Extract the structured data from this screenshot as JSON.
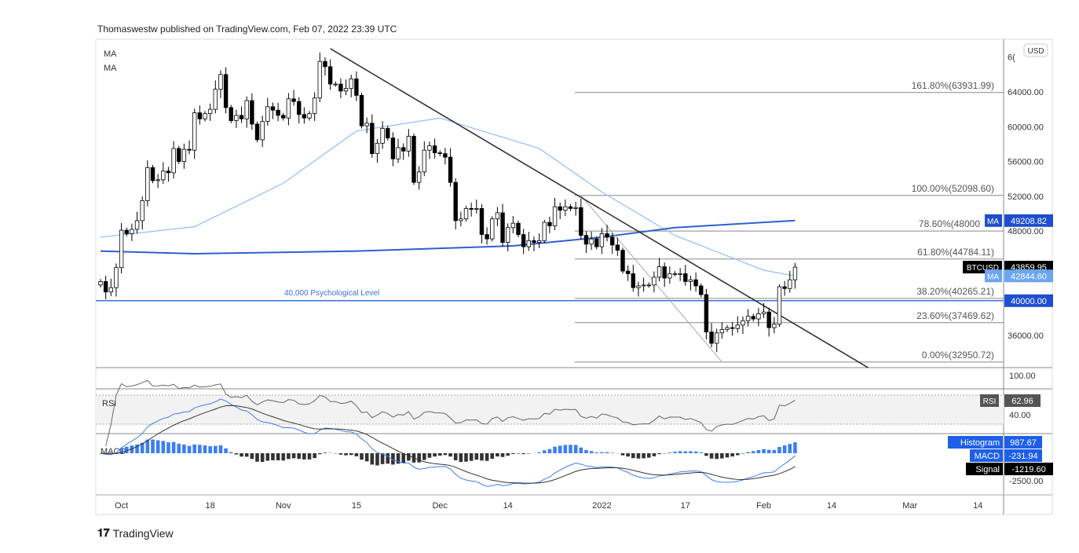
{
  "credit": "Thomaswestw published on TradingView.com, Feb 07, 2022 23:39 UTC",
  "brand": "TradingView",
  "legend": {
    "ma1": "MA",
    "ma2": "MA",
    "rsi": "RSI",
    "macd": "MACD"
  },
  "currency": "USD",
  "annotation": "40,000 Psychological Level",
  "colors": {
    "ma50": "#90bff5",
    "ma200": "#2f5fd0",
    "level": "#3b6fe0",
    "trend": "#333333",
    "up": "#ffffff",
    "down": "#000000"
  },
  "chart_data": {
    "type": "candlestick",
    "symbol": "BTCUSD",
    "start_date": "2021-09-27",
    "closes": [
      42200,
      41000,
      41500,
      43800,
      48100,
      47700,
      48200,
      49200,
      51500,
      55300,
      53800,
      53900,
      54900,
      54700,
      57500,
      56000,
      57400,
      57300,
      61600,
      60900,
      61500,
      62000,
      64300,
      66000,
      62200,
      60700,
      61300,
      60900,
      63000,
      60300,
      58500,
      60600,
      62300,
      61900,
      61300,
      61000,
      63200,
      62900,
      61400,
      61000,
      61500,
      63300,
      67500,
      66900,
      64900,
      64900,
      64100,
      64400,
      65500,
      63600,
      60100,
      60400,
      56900,
      58100,
      59800,
      58700,
      56300,
      57600,
      57200,
      58900,
      53600,
      54800,
      57300,
      57800,
      57000,
      56900,
      56500,
      53600,
      49200,
      49400,
      50600,
      50500,
      50600,
      47600,
      47100,
      49400,
      50100,
      46700,
      48400,
      48900,
      47600,
      46200,
      46900,
      46700,
      46900,
      49000,
      48600,
      50800,
      50400,
      50800,
      50600,
      50700,
      47500,
      46500,
      47100,
      46200,
      47700,
      47300,
      46400,
      45800,
      43400,
      43100,
      41500,
      41700,
      41800,
      41800,
      42700,
      43900,
      42600,
      43100,
      43100,
      43100,
      42200,
      42400,
      41700,
      40700,
      36400,
      35100,
      36300,
      36700,
      36900,
      36800,
      37200,
      37700,
      38200,
      37900,
      38500,
      38700,
      36900,
      37300,
      41600,
      41400,
      42400,
      43860
    ],
    "ma50": [
      [
        "2021-09-27",
        47300
      ],
      [
        "2021-10-15",
        48500
      ],
      [
        "2021-11-01",
        53500
      ],
      [
        "2021-11-15",
        59500
      ],
      [
        "2021-12-01",
        61000
      ],
      [
        "2021-12-20",
        57500
      ],
      [
        "2022-01-01",
        52500
      ],
      [
        "2022-01-15",
        47500
      ],
      [
        "2022-02-01",
        43500
      ],
      [
        "2022-02-07",
        42844.6
      ]
    ],
    "ma200": [
      [
        "2021-09-27",
        45700
      ],
      [
        "2021-10-15",
        45400
      ],
      [
        "2021-11-15",
        45700
      ],
      [
        "2021-12-15",
        46300
      ],
      [
        "2022-01-01",
        47300
      ],
      [
        "2022-01-15",
        48400
      ],
      [
        "2022-02-07",
        49208.82
      ]
    ],
    "trendline": [
      [
        "2021-11-10",
        68970
      ],
      [
        "2022-02-21",
        32300
      ]
    ],
    "fib_anchor": [
      [
        "2021-12-28",
        52098.6
      ],
      [
        "2022-01-24",
        32950.72
      ]
    ],
    "horizontal_level": 40000,
    "fib_levels": [
      {
        "label": "161.80%(63931.99)",
        "value": 63931.99
      },
      {
        "label": "100.00%(52098.60)",
        "value": 52098.6
      },
      {
        "label": "78.60%(48000",
        "value": 48000
      },
      {
        "label": "61.80%(44784.11)",
        "value": 44784.11
      },
      {
        "label": "38.20%(40265.21)",
        "value": 40265.21
      },
      {
        "label": "23.60%(37469.62)",
        "value": 37469.62
      },
      {
        "label": "0.00%(32950.72)",
        "value": 32950.72
      }
    ],
    "y_ticks": [
      "6(",
      "64000.00",
      "60000.00",
      "56000.00",
      "52000.00",
      "48000.00",
      "36000.00"
    ],
    "y_tick_values": [
      68000,
      64000,
      60000,
      56000,
      52000,
      48000,
      36000
    ],
    "x_ticks": [
      "Oct",
      "18",
      "Nov",
      "15",
      "Dec",
      "14",
      "2022",
      "17",
      "Feb",
      "14",
      "Mar",
      "14"
    ],
    "x_tick_dates": [
      "2021-10-01",
      "2021-10-18",
      "2021-11-01",
      "2021-11-15",
      "2021-12-01",
      "2021-12-14",
      "2022-01-01",
      "2022-01-17",
      "2022-02-01",
      "2022-02-14",
      "2022-03-01",
      "2022-03-14"
    ],
    "price_labels": [
      {
        "tag": "MA",
        "value": "49208.82",
        "price": 49208.82,
        "bg": "#1e4fd0"
      },
      {
        "tag": "BTCUSD",
        "value": "43859.95",
        "price": 43859.95,
        "bg": "#000000"
      },
      {
        "tag": "MA",
        "value": "42844.60",
        "price": 42844.6,
        "bg": "#6aa6f5"
      },
      {
        "tag": "",
        "value": "40000.00",
        "price": 40000,
        "bg": "#1e4fd0"
      }
    ],
    "rsi": {
      "value": "62.96",
      "tick": "40.00",
      "tick_top": "100.00"
    },
    "macd": {
      "histogram_label": "Histogram",
      "histogram": "987.67",
      "macd_label": "MACD",
      "macd": "-231.94",
      "signal_label": "Signal",
      "signal": "-1219.60",
      "tick": "-2500.00"
    }
  }
}
